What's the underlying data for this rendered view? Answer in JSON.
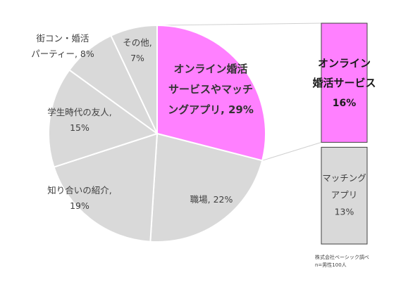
{
  "chart_data": [
    {
      "type": "pie",
      "slices": [
        {
          "label": [
            "オンライン婚活",
            "サービスやマッチ",
            "ングアプリ, 29%"
          ],
          "value": 29,
          "color": "#ff80ff",
          "highlight": true
        },
        {
          "label": [
            "職場, 22%"
          ],
          "value": 22,
          "color": "#d9d9d9"
        },
        {
          "label": [
            "知り合いの紹介,",
            "19%"
          ],
          "value": 19,
          "color": "#d9d9d9"
        },
        {
          "label": [
            "学生時代の友人,",
            "15%"
          ],
          "value": 15,
          "color": "#d9d9d9"
        },
        {
          "label": [
            "街コン・婚活",
            "パーティー, 8%"
          ],
          "value": 8,
          "color": "#d9d9d9"
        },
        {
          "label": [
            "その他,",
            "7%"
          ],
          "value": 7,
          "color": "#d9d9d9"
        }
      ],
      "start_position": "12 o'clock",
      "direction": "clockwise"
    },
    {
      "type": "bar",
      "stacked": true,
      "segments": [
        {
          "label": [
            "オンライン",
            "婚活サービス"
          ],
          "value_label": "16%",
          "value": 16,
          "color": "#ff80ff"
        },
        {
          "label": [
            "マッチング",
            "アプリ"
          ],
          "value_label": "13%",
          "value": 13,
          "color": "#d9d9d9"
        }
      ]
    }
  ],
  "notes": [
    "株式会社ベーシック調べ",
    "n=男性100人"
  ]
}
